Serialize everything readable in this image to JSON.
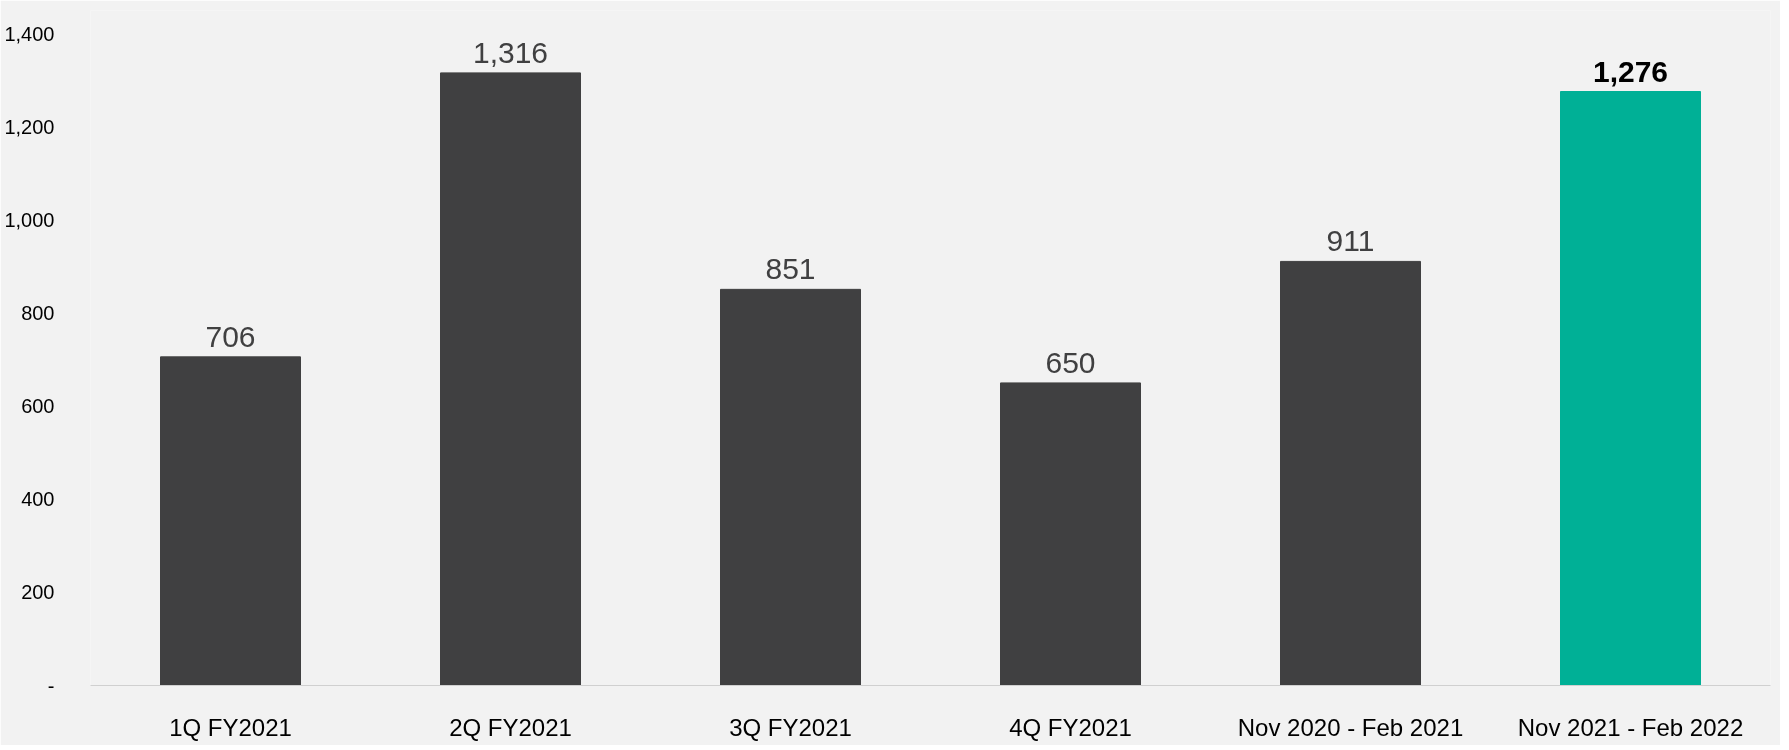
{
  "chart_data": {
    "type": "bar",
    "categories": [
      "1Q FY2021",
      "2Q FY2021",
      "3Q FY2021",
      "4Q FY2021",
      "Nov 2020 - Feb 2021",
      "Nov 2021 - Feb 2022"
    ],
    "values": [
      706,
      1316,
      851,
      650,
      911,
      1276
    ],
    "colors": [
      "#404041",
      "#404041",
      "#404041",
      "#404041",
      "#404041",
      "#00b096"
    ],
    "value_labels": [
      "706",
      "1,316",
      "851",
      "650",
      "911",
      "1,276"
    ],
    "ylim": [
      0,
      1450
    ],
    "yticks": [
      {
        "value": 0,
        "label": "-"
      },
      200,
      400,
      600,
      800,
      {
        "value": 1000,
        "label": "1,000"
      },
      {
        "value": 1200,
        "label": "1,200"
      },
      {
        "value": 1400,
        "label": "1,400"
      }
    ],
    "grid": false
  }
}
